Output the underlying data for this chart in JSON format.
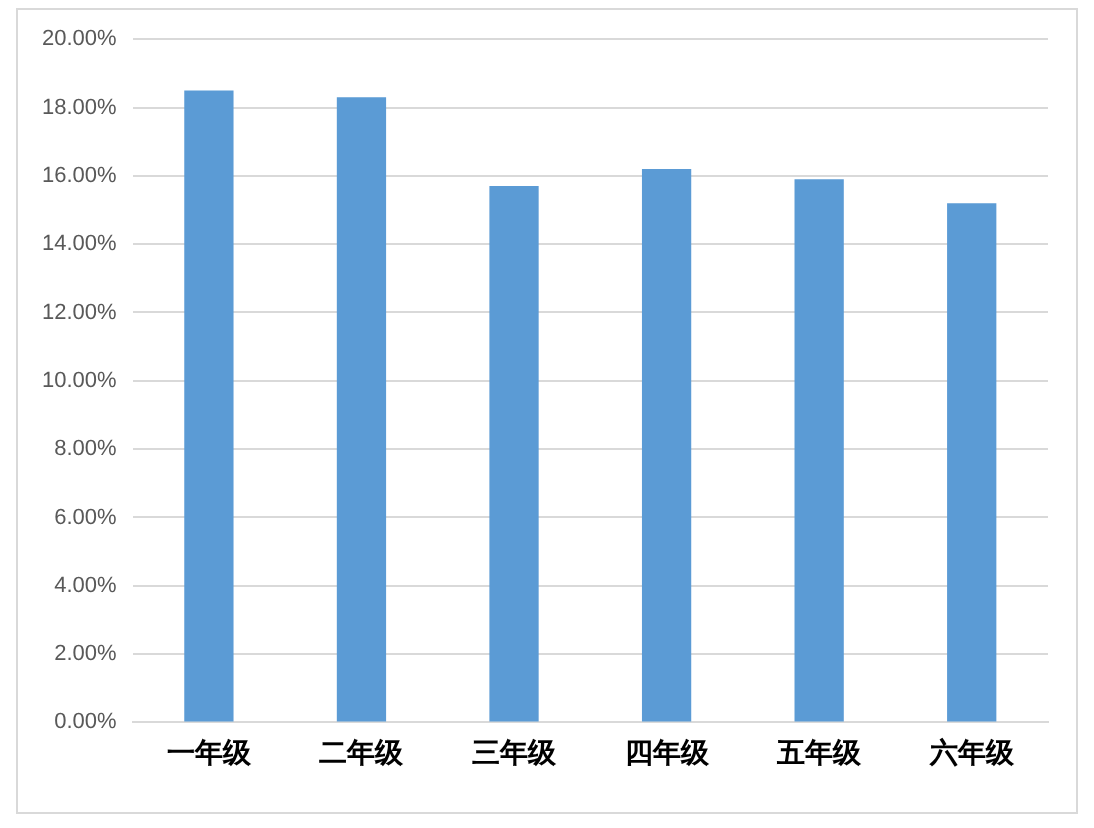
{
  "chart_data": {
    "type": "bar",
    "categories": [
      "一年级",
      "二年级",
      "三年级",
      "四年级",
      "五年级",
      "六年级"
    ],
    "values": [
      18.5,
      18.3,
      15.7,
      16.2,
      15.9,
      15.2
    ],
    "color": "#5b9bd5",
    "ylim": [
      0,
      20
    ],
    "yticks": [
      {
        "value": 0,
        "label": "0.00%"
      },
      {
        "value": 2,
        "label": "2.00%"
      },
      {
        "value": 4,
        "label": "4.00%"
      },
      {
        "value": 6,
        "label": "6.00%"
      },
      {
        "value": 8,
        "label": "8.00%"
      },
      {
        "value": 10,
        "label": "10.00%"
      },
      {
        "value": 12,
        "label": "12.00%"
      },
      {
        "value": 14,
        "label": "14.00%"
      },
      {
        "value": 16,
        "label": "16.00%"
      },
      {
        "value": 18,
        "label": "18.00%"
      },
      {
        "value": 20,
        "label": "20.00%"
      }
    ],
    "grid": "y",
    "legend": false
  }
}
